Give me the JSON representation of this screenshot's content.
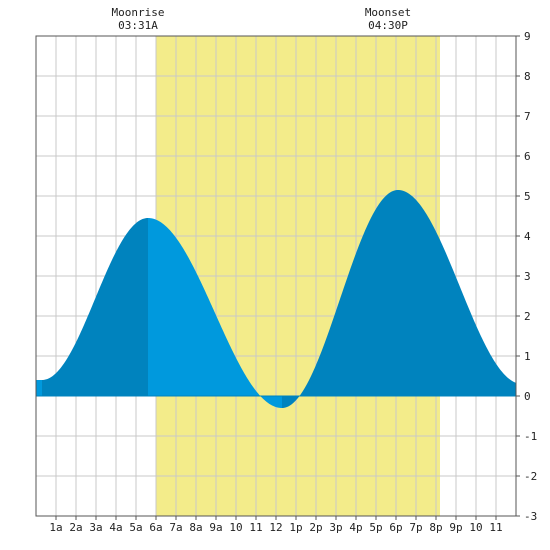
{
  "chart_data": {
    "type": "area",
    "title": "",
    "xlabel": "",
    "ylabel": "",
    "x_range_hours": [
      0,
      24
    ],
    "ylim": [
      -3,
      9
    ],
    "y_ticks": [
      -3,
      -2,
      -1,
      0,
      1,
      2,
      3,
      4,
      5,
      6,
      7,
      8,
      9
    ],
    "x_tick_labels": [
      "1a",
      "2a",
      "3a",
      "4a",
      "5a",
      "6a",
      "7a",
      "8a",
      "9a",
      "10",
      "11",
      "12",
      "1p",
      "2p",
      "3p",
      "4p",
      "5p",
      "6p",
      "7p",
      "8p",
      "9p",
      "10",
      "11"
    ],
    "grid": true,
    "daylight_hours": [
      6.0,
      20.2
    ],
    "extremes": [
      {
        "kind": "low",
        "hour": 0.3,
        "value": 0.4
      },
      {
        "kind": "high",
        "hour": 5.6,
        "value": 4.45
      },
      {
        "kind": "low",
        "hour": 12.3,
        "value": -0.3
      },
      {
        "kind": "high",
        "hour": 18.1,
        "value": 5.15
      },
      {
        "kind": "low",
        "hour": 24.3,
        "value": 0.3
      }
    ],
    "annotations": [
      {
        "label": "Moonrise",
        "time": "03:31A",
        "hour": 5.1
      },
      {
        "label": "Moonset",
        "time": "04:30P",
        "hour": 17.6
      }
    ]
  },
  "colors": {
    "daylight": "#f3ec8a",
    "water_light": "#0099dd",
    "water_dark": "#0083be",
    "grid": "#c8c8c8",
    "frame": "#555555"
  }
}
